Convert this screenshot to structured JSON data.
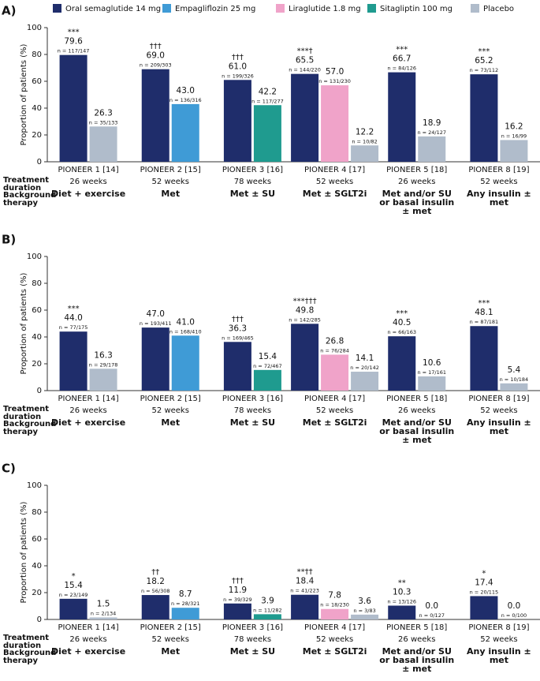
{
  "chart_data": [
    {
      "type": "bar",
      "panel_label": "A)",
      "ylabel": "Proportion of patients (%)",
      "categories": [
        "PIONEER 1 [14]",
        "PIONEER 2 [15]",
        "PIONEER 3 [16]",
        "PIONEER 4 [17]",
        "PIONEER 5 [18]",
        "PIONEER 8 [19]"
      ],
      "durations": [
        "26 weeks",
        "52 weeks",
        "78 weeks",
        "52 weeks",
        "26 weeks",
        "52 weeks"
      ],
      "backgrounds": [
        "Diet + exercise",
        "Met",
        "Met ± SU",
        "Met ± SGLT2i",
        "Met and/or SU or basal insulin ± met",
        "Any insulin ± met"
      ],
      "row_labels": [
        "Treatment duration",
        "Background therapy"
      ],
      "ylim": [
        0,
        100
      ],
      "yticks": [
        0,
        20,
        40,
        60,
        80,
        100
      ],
      "series": [
        {
          "name": "Oral semaglutide 14 mg",
          "color": "#1f2d6b",
          "values": [
            79.6,
            69.0,
            61.0,
            65.5,
            66.7,
            65.2
          ],
          "value_labels": [
            "79.6",
            "69.0",
            "61.0",
            "65.5",
            "66.7",
            "65.2"
          ],
          "n_labels": [
            "n = 117/147",
            "n = 209/303",
            "n = 199/326",
            "n = 144/220",
            "n = 84/126",
            "n = 73/112"
          ],
          "annotations": [
            "***",
            "†††",
            "†††",
            "***†",
            "***",
            "***"
          ]
        },
        {
          "name": "Empagliflozin 25 mg",
          "color": "#3f9bd6",
          "values": [
            null,
            43.0,
            null,
            null,
            null,
            null
          ],
          "value_labels": [
            null,
            "43.0",
            null,
            null,
            null,
            null
          ],
          "n_labels": [
            null,
            "n = 136/316",
            null,
            null,
            null,
            null
          ],
          "annotations": [
            null,
            null,
            null,
            null,
            null,
            null
          ]
        },
        {
          "name": "Liraglutide 1.8 mg",
          "color": "#f0a3c9",
          "values": [
            null,
            null,
            null,
            57.0,
            null,
            null
          ],
          "value_labels": [
            null,
            null,
            null,
            "57.0",
            null,
            null
          ],
          "n_labels": [
            null,
            null,
            null,
            "n = 131/230",
            null,
            null
          ],
          "annotations": [
            null,
            null,
            null,
            null,
            null,
            null
          ]
        },
        {
          "name": "Sitagliptin 100 mg",
          "color": "#1f9b8f",
          "values": [
            null,
            null,
            42.2,
            null,
            null,
            null
          ],
          "value_labels": [
            null,
            null,
            "42.2",
            null,
            null,
            null
          ],
          "n_labels": [
            null,
            null,
            "n = 117/277",
            null,
            null,
            null
          ],
          "annotations": [
            null,
            null,
            null,
            null,
            null,
            null
          ]
        },
        {
          "name": "Placebo",
          "color": "#b0bccb",
          "values": [
            26.3,
            null,
            null,
            12.2,
            18.9,
            16.2
          ],
          "value_labels": [
            "26.3",
            null,
            null,
            "12.2",
            "18.9",
            "16.2"
          ],
          "n_labels": [
            "n = 35/133",
            null,
            null,
            "n = 10/82",
            "n = 24/127",
            "n = 16/99"
          ],
          "annotations": [
            null,
            null,
            null,
            null,
            null,
            null
          ]
        }
      ]
    },
    {
      "type": "bar",
      "panel_label": "B)",
      "ylabel": "Proportion of patients (%)",
      "categories": [
        "PIONEER 1 [14]",
        "PIONEER 2 [15]",
        "PIONEER 3 [16]",
        "PIONEER 4 [17]",
        "PIONEER 5 [18]",
        "PIONEER 8 [19]"
      ],
      "durations": [
        "26 weeks",
        "52 weeks",
        "78 weeks",
        "52 weeks",
        "26 weeks",
        "52 weeks"
      ],
      "backgrounds": [
        "Diet + exercise",
        "Met",
        "Met ± SU",
        "Met ± SGLT2i",
        "Met and/or SU or basal insulin ± met",
        "Any insulin ± met"
      ],
      "row_labels": [
        "Treatment duration",
        "Background therapy"
      ],
      "ylim": [
        0,
        100
      ],
      "yticks": [
        0,
        20,
        40,
        60,
        80,
        100
      ],
      "series": [
        {
          "color": "#1f2d6b",
          "values": [
            44.0,
            47.0,
            36.3,
            49.8,
            40.5,
            48.1
          ],
          "value_labels": [
            "44.0",
            "47.0",
            "36.3",
            "49.8",
            "40.5",
            "48.1"
          ],
          "n_labels": [
            "n = 77/175",
            "n = 193/411",
            "n = 169/465",
            "n = 142/285",
            "n = 66/163",
            "n = 87/181"
          ],
          "annotations": [
            "***",
            null,
            "†††",
            "***†††",
            "***",
            "***"
          ]
        },
        {
          "color": "#3f9bd6",
          "values": [
            null,
            41.0,
            null,
            null,
            null,
            null
          ],
          "value_labels": [
            null,
            "41.0",
            null,
            null,
            null,
            null
          ],
          "n_labels": [
            null,
            "n = 168/410",
            null,
            null,
            null,
            null
          ],
          "annotations": [
            null,
            null,
            null,
            null,
            null,
            null
          ]
        },
        {
          "color": "#f0a3c9",
          "values": [
            null,
            null,
            null,
            26.8,
            null,
            null
          ],
          "value_labels": [
            null,
            null,
            null,
            "26.8",
            null,
            null
          ],
          "n_labels": [
            null,
            null,
            null,
            "n = 76/284",
            null,
            null
          ],
          "annotations": [
            null,
            null,
            null,
            null,
            null,
            null
          ]
        },
        {
          "color": "#1f9b8f",
          "values": [
            null,
            null,
            15.4,
            null,
            null,
            null
          ],
          "value_labels": [
            null,
            null,
            "15.4",
            null,
            null,
            null
          ],
          "n_labels": [
            null,
            null,
            "n = 72/467",
            null,
            null,
            null
          ],
          "annotations": [
            null,
            null,
            null,
            null,
            null,
            null
          ]
        },
        {
          "color": "#b0bccb",
          "values": [
            16.3,
            null,
            null,
            14.1,
            10.6,
            5.4
          ],
          "value_labels": [
            "16.3",
            null,
            null,
            "14.1",
            "10.6",
            "5.4"
          ],
          "n_labels": [
            "n = 29/178",
            null,
            null,
            "n = 20/142",
            "n = 17/161",
            "n = 10/184"
          ],
          "annotations": [
            null,
            null,
            null,
            null,
            null,
            null
          ]
        }
      ]
    },
    {
      "type": "bar",
      "panel_label": "C)",
      "ylabel": "Proportion of patients (%)",
      "categories": [
        "PIONEER 1 [14]",
        "PIONEER 2 [15]",
        "PIONEER 3 [16]",
        "PIONEER 4 [17]",
        "PIONEER 5 [18]",
        "PIONEER 8 [19]"
      ],
      "durations": [
        "26 weeks",
        "52 weeks",
        "78 weeks",
        "52 weeks",
        "26 weeks",
        "52 weeks"
      ],
      "backgrounds": [
        "Diet + exercise",
        "Met",
        "Met ± SU",
        "Met ± SGLT2i",
        "Met and/or SU or basal insulin ± met",
        "Any insulin ± met"
      ],
      "row_labels": [
        "Treatment duration",
        "Background therapy"
      ],
      "ylim": [
        0,
        100
      ],
      "yticks": [
        0,
        20,
        40,
        60,
        80,
        100
      ],
      "series": [
        {
          "color": "#1f2d6b",
          "values": [
            15.4,
            18.2,
            11.9,
            18.4,
            10.3,
            17.4
          ],
          "value_labels": [
            "15.4",
            "18.2",
            "11.9",
            "18.4",
            "10.3",
            "17.4"
          ],
          "n_labels": [
            "n = 23/149",
            "n = 56/308",
            "n = 39/329",
            "n = 41/223",
            "n = 13/126",
            "n = 20/115"
          ],
          "annotations": [
            "*",
            "††",
            "†††",
            "**††",
            "**",
            "*"
          ]
        },
        {
          "color": "#3f9bd6",
          "values": [
            null,
            8.7,
            null,
            null,
            null,
            null
          ],
          "value_labels": [
            null,
            "8.7",
            null,
            null,
            null,
            null
          ],
          "n_labels": [
            null,
            "n = 28/321",
            null,
            null,
            null,
            null
          ],
          "annotations": [
            null,
            null,
            null,
            null,
            null,
            null
          ]
        },
        {
          "color": "#f0a3c9",
          "values": [
            null,
            null,
            null,
            7.8,
            null,
            null
          ],
          "value_labels": [
            null,
            null,
            null,
            "7.8",
            null,
            null
          ],
          "n_labels": [
            null,
            null,
            null,
            "n = 18/230",
            null,
            null
          ],
          "annotations": [
            null,
            null,
            null,
            null,
            null,
            null
          ]
        },
        {
          "color": "#1f9b8f",
          "values": [
            null,
            null,
            3.9,
            null,
            null,
            null
          ],
          "value_labels": [
            null,
            null,
            "3.9",
            null,
            null,
            null
          ],
          "n_labels": [
            null,
            null,
            "n = 11/282",
            null,
            null,
            null
          ],
          "annotations": [
            null,
            null,
            null,
            null,
            null,
            null
          ]
        },
        {
          "color": "#b0bccb",
          "values": [
            1.5,
            null,
            null,
            3.6,
            0.0,
            0.0
          ],
          "value_labels": [
            "1.5",
            null,
            null,
            "3.6",
            "0.0",
            "0.0"
          ],
          "n_labels": [
            "n = 2/134",
            null,
            null,
            "n = 3/83",
            "n = 0/127",
            "n = 0/100"
          ],
          "annotations": [
            null,
            null,
            null,
            null,
            null,
            null
          ]
        }
      ]
    }
  ]
}
